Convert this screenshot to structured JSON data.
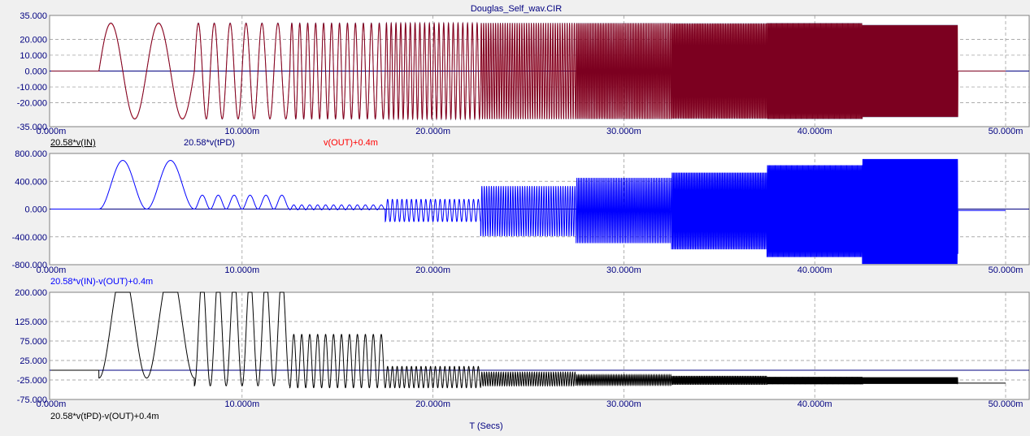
{
  "window_title": "Douglas_Self_wav.CIR",
  "colors": {
    "in": "#000000",
    "tpd": "#000080",
    "out": "#ff0000",
    "p2": "#0000ff",
    "p3": "#000000",
    "axis": "#000080",
    "background": "#f0f0f0"
  },
  "x_axis": {
    "label": "T (Secs)",
    "range": [
      0,
      0.05
    ],
    "ticks": [
      0,
      0.01,
      0.02,
      0.03,
      0.04,
      0.05
    ],
    "tick_labels": [
      "0.000m",
      "10.000m",
      "20.000m",
      "30.000m",
      "40.000m",
      "50.000m"
    ]
  },
  "chart_data": [
    {
      "type": "line",
      "title": "Douglas_Self_wav.CIR",
      "ylim": [
        -35,
        35
      ],
      "y_ticks": [
        -35,
        -20,
        -10,
        0,
        10,
        20,
        35
      ],
      "y_tick_labels": [
        "-35.000",
        "-20.000",
        "-10.000",
        "0.000",
        "10.000",
        "20.000",
        "35.000"
      ],
      "grid": true,
      "series": [
        {
          "name": "20.58*v(IN)"
        },
        {
          "name": "20.58*v(tPD)"
        },
        {
          "name": "v(OUT)+0.4m"
        }
      ],
      "signal": {
        "start_s": 0.0025,
        "end_s": 0.0475,
        "amplitude": 30,
        "segment_seconds": 0.005,
        "cycles_per_segment": [
          2,
          6,
          12,
          20,
          40,
          60,
          80,
          100,
          120
        ]
      }
    },
    {
      "type": "line",
      "ylim": [
        -800,
        800
      ],
      "y_ticks": [
        -800,
        -400,
        0,
        400,
        800
      ],
      "y_tick_labels": [
        "-800.000",
        "-400.000",
        "0.000",
        "400.000",
        "800.000"
      ],
      "grid": true,
      "series": [
        {
          "name": "20.58*v(IN)-v(OUT)+0.4m"
        }
      ],
      "segments": [
        {
          "start": 0.0025,
          "end": 0.0075,
          "cycles": 2,
          "min": 0,
          "max": 700
        },
        {
          "start": 0.0075,
          "end": 0.0125,
          "cycles": 6,
          "min": 0,
          "max": 200
        },
        {
          "start": 0.0125,
          "end": 0.0175,
          "cycles": 12,
          "min": -10,
          "max": 60
        },
        {
          "start": 0.0175,
          "end": 0.0225,
          "cycles": 20,
          "min": -180,
          "max": 140
        },
        {
          "start": 0.0225,
          "end": 0.0275,
          "cycles": 40,
          "min": -390,
          "max": 330
        },
        {
          "start": 0.0275,
          "end": 0.0325,
          "cycles": 60,
          "min": -490,
          "max": 450
        },
        {
          "start": 0.0325,
          "end": 0.0375,
          "cycles": 80,
          "min": -580,
          "max": 530
        },
        {
          "start": 0.0375,
          "end": 0.0425,
          "cycles": 100,
          "min": -690,
          "max": 630
        },
        {
          "start": 0.0425,
          "end": 0.0475,
          "cycles": 120,
          "min": -790,
          "max": 720
        }
      ],
      "tail_level": -20
    },
    {
      "type": "line",
      "ylim": [
        -75,
        200
      ],
      "y_ticks": [
        -75,
        -25,
        25,
        75,
        125,
        200
      ],
      "y_tick_labels": [
        "-75.000",
        "-25.000",
        "25.000",
        "75.000",
        "125.000",
        "200.000"
      ],
      "grid": true,
      "series": [
        {
          "name": "20.58*v(tPD)-v(OUT)+0.4m"
        }
      ],
      "segments": [
        {
          "start": 0.0025,
          "end": 0.0075,
          "cycles": 2,
          "min": -20,
          "max": 260
        },
        {
          "start": 0.0075,
          "end": 0.0125,
          "cycles": 6,
          "min": -40,
          "max": 240
        },
        {
          "start": 0.0125,
          "end": 0.0175,
          "cycles": 12,
          "min": -45,
          "max": 92
        },
        {
          "start": 0.0175,
          "end": 0.0225,
          "cycles": 20,
          "min": -45,
          "max": 10
        },
        {
          "start": 0.0225,
          "end": 0.0275,
          "cycles": 40,
          "min": -40,
          "max": -5
        },
        {
          "start": 0.0275,
          "end": 0.0325,
          "cycles": 60,
          "min": -38,
          "max": -12
        },
        {
          "start": 0.0325,
          "end": 0.0375,
          "cycles": 80,
          "min": -37,
          "max": -15
        },
        {
          "start": 0.0375,
          "end": 0.0425,
          "cycles": 100,
          "min": -36,
          "max": -17
        },
        {
          "start": 0.0425,
          "end": 0.0475,
          "cycles": 120,
          "min": -35,
          "max": -18
        }
      ],
      "tail_level": -33
    }
  ]
}
